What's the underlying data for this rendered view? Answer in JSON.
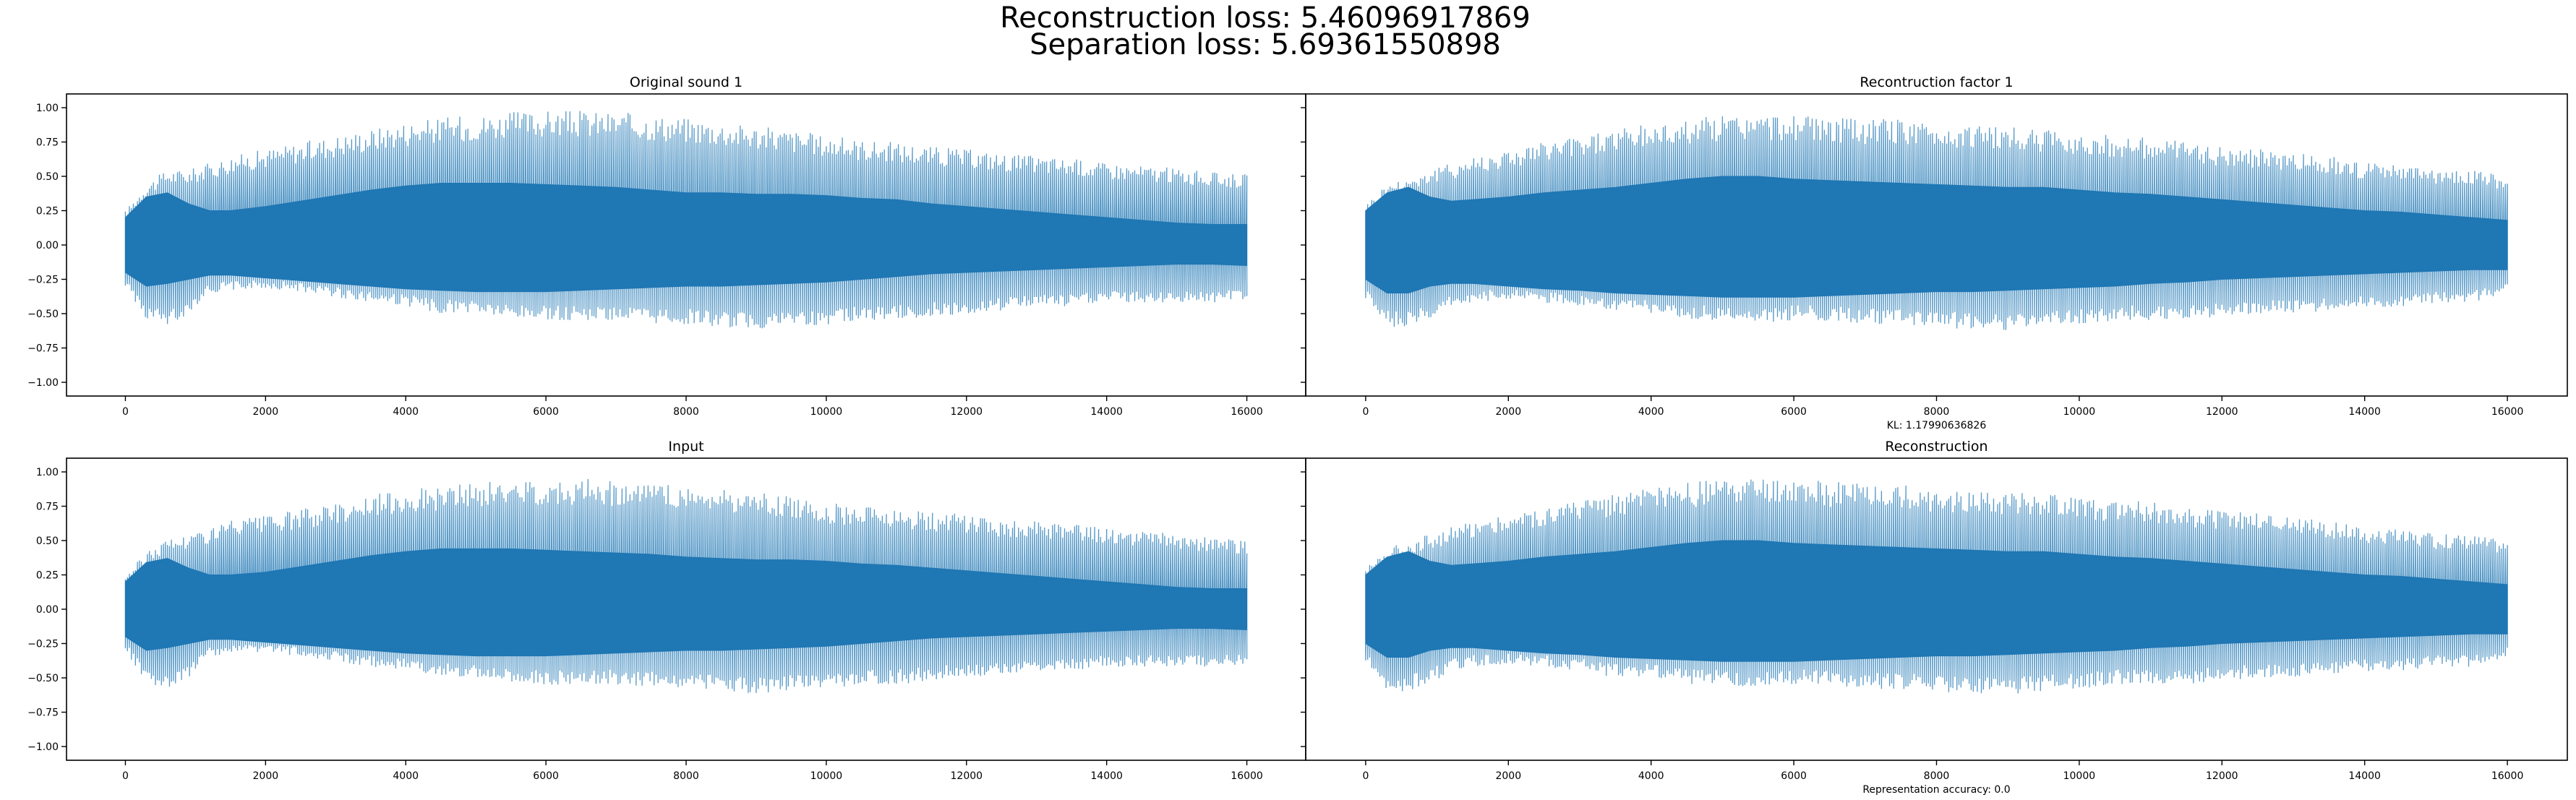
{
  "figure": {
    "title_line1": "Reconstruction loss: 5.46096917869",
    "title_line2": "Separation loss: 5.69361550898",
    "line_color": "#1f77b4"
  },
  "chart_data": [
    {
      "type": "line",
      "title": "Original sound 1",
      "xlabel": "",
      "ylabel": "",
      "xlim": [
        -840,
        16840
      ],
      "ylim": [
        -1.1,
        1.1
      ],
      "xticks": [
        0,
        2000,
        4000,
        6000,
        8000,
        10000,
        12000,
        14000,
        16000
      ],
      "yticks": [
        1.0,
        0.75,
        0.5,
        0.25,
        0.0,
        -0.25,
        -0.5,
        -0.75,
        -1.0
      ],
      "ytick_labels": [
        "1.00",
        "0.75",
        "0.50",
        "0.25",
        "0.00",
        "−0.25",
        "−0.50",
        "−0.75",
        "−1.00"
      ],
      "annotation": "",
      "series": [
        {
          "x": [
            0,
            300,
            600,
            900,
            1200,
            1500,
            2000,
            2500,
            3000,
            3500,
            4000,
            4500,
            5000,
            5500,
            6000,
            6500,
            7000,
            7500,
            8000,
            8500,
            9000,
            9500,
            10000,
            10500,
            11000,
            11500,
            12000,
            12500,
            13000,
            13500,
            14000,
            14500,
            15000,
            15500,
            16000
          ],
          "upper": [
            0.25,
            0.45,
            0.55,
            0.55,
            0.6,
            0.65,
            0.7,
            0.75,
            0.8,
            0.85,
            0.9,
            0.93,
            0.95,
            0.97,
            0.98,
            0.98,
            0.97,
            0.95,
            0.93,
            0.9,
            0.87,
            0.84,
            0.8,
            0.77,
            0.75,
            0.72,
            0.7,
            0.67,
            0.65,
            0.63,
            0.6,
            0.58,
            0.56,
            0.53,
            0.52
          ],
          "lower": [
            -0.3,
            -0.55,
            -0.6,
            -0.5,
            -0.35,
            -0.33,
            -0.32,
            -0.34,
            -0.38,
            -0.42,
            -0.45,
            -0.5,
            -0.5,
            -0.55,
            -0.55,
            -0.55,
            -0.55,
            -0.58,
            -0.58,
            -0.6,
            -0.62,
            -0.6,
            -0.58,
            -0.55,
            -0.55,
            -0.52,
            -0.5,
            -0.48,
            -0.45,
            -0.45,
            -0.42,
            -0.42,
            -0.42,
            -0.42,
            -0.4
          ],
          "core_upper": [
            0.2,
            0.35,
            0.38,
            0.3,
            0.25,
            0.25,
            0.28,
            0.32,
            0.36,
            0.4,
            0.43,
            0.45,
            0.45,
            0.45,
            0.44,
            0.43,
            0.42,
            0.4,
            0.38,
            0.38,
            0.37,
            0.37,
            0.36,
            0.34,
            0.33,
            0.3,
            0.28,
            0.26,
            0.24,
            0.22,
            0.2,
            0.18,
            0.16,
            0.15,
            0.15
          ],
          "core_lower": [
            -0.2,
            -0.3,
            -0.28,
            -0.25,
            -0.22,
            -0.22,
            -0.24,
            -0.26,
            -0.28,
            -0.3,
            -0.32,
            -0.33,
            -0.34,
            -0.34,
            -0.34,
            -0.33,
            -0.32,
            -0.31,
            -0.3,
            -0.3,
            -0.29,
            -0.28,
            -0.27,
            -0.25,
            -0.23,
            -0.21,
            -0.2,
            -0.19,
            -0.18,
            -0.17,
            -0.16,
            -0.15,
            -0.14,
            -0.14,
            -0.15
          ]
        }
      ]
    },
    {
      "type": "line",
      "title": "Recontruction factor 1",
      "xlabel": "",
      "ylabel": "",
      "xlim": [
        -840,
        16840
      ],
      "ylim": [
        -1.1,
        1.1
      ],
      "xticks": [
        0,
        2000,
        4000,
        6000,
        8000,
        10000,
        12000,
        14000,
        16000
      ],
      "yticks": [
        1.0,
        0.75,
        0.5,
        0.25,
        0.0,
        -0.25,
        -0.5,
        -0.75,
        -1.0
      ],
      "ytick_labels": [
        "",
        "",
        "",
        "",
        "",
        "",
        "",
        "",
        ""
      ],
      "annotation": "KL: 1.17990636826",
      "series": [
        {
          "x": [
            0,
            300,
            600,
            900,
            1200,
            1500,
            2000,
            2500,
            3000,
            3500,
            4000,
            4500,
            5000,
            5500,
            6000,
            6500,
            7000,
            7500,
            8000,
            8500,
            9000,
            9500,
            10000,
            10500,
            11000,
            11500,
            12000,
            12500,
            13000,
            13500,
            14000,
            14500,
            15000,
            15500,
            16000
          ],
          "upper": [
            0.3,
            0.45,
            0.5,
            0.55,
            0.6,
            0.65,
            0.7,
            0.75,
            0.8,
            0.85,
            0.88,
            0.92,
            0.95,
            0.95,
            0.95,
            0.93,
            0.92,
            0.92,
            0.88,
            0.88,
            0.86,
            0.84,
            0.82,
            0.8,
            0.78,
            0.75,
            0.72,
            0.7,
            0.67,
            0.65,
            0.6,
            0.58,
            0.55,
            0.55,
            0.5
          ],
          "lower": [
            -0.4,
            -0.6,
            -0.6,
            -0.55,
            -0.45,
            -0.42,
            -0.4,
            -0.42,
            -0.45,
            -0.5,
            -0.5,
            -0.55,
            -0.55,
            -0.58,
            -0.55,
            -0.55,
            -0.58,
            -0.58,
            -0.6,
            -0.62,
            -0.62,
            -0.6,
            -0.58,
            -0.55,
            -0.55,
            -0.55,
            -0.52,
            -0.5,
            -0.5,
            -0.48,
            -0.45,
            -0.45,
            -0.42,
            -0.42,
            -0.35
          ],
          "core_upper": [
            0.25,
            0.38,
            0.42,
            0.35,
            0.32,
            0.33,
            0.35,
            0.38,
            0.4,
            0.42,
            0.45,
            0.48,
            0.5,
            0.5,
            0.48,
            0.47,
            0.46,
            0.45,
            0.44,
            0.43,
            0.42,
            0.42,
            0.4,
            0.38,
            0.37,
            0.35,
            0.33,
            0.31,
            0.29,
            0.27,
            0.25,
            0.24,
            0.22,
            0.2,
            0.18
          ],
          "core_lower": [
            -0.25,
            -0.35,
            -0.35,
            -0.3,
            -0.28,
            -0.28,
            -0.3,
            -0.32,
            -0.33,
            -0.35,
            -0.36,
            -0.37,
            -0.38,
            -0.38,
            -0.38,
            -0.37,
            -0.36,
            -0.35,
            -0.34,
            -0.34,
            -0.33,
            -0.32,
            -0.31,
            -0.3,
            -0.28,
            -0.27,
            -0.25,
            -0.24,
            -0.23,
            -0.22,
            -0.21,
            -0.2,
            -0.19,
            -0.18,
            -0.18
          ]
        }
      ]
    },
    {
      "type": "line",
      "title": "Input",
      "xlabel": "",
      "ylabel": "",
      "xlim": [
        -840,
        16840
      ],
      "ylim": [
        -1.1,
        1.1
      ],
      "xticks": [
        0,
        2000,
        4000,
        6000,
        8000,
        10000,
        12000,
        14000,
        16000
      ],
      "yticks": [
        1.0,
        0.75,
        0.5,
        0.25,
        0.0,
        -0.25,
        -0.5,
        -0.75,
        -1.0
      ],
      "ytick_labels": [
        "1.00",
        "0.75",
        "0.50",
        "0.25",
        "0.00",
        "−0.25",
        "−0.50",
        "−0.75",
        "−1.00"
      ],
      "annotation": "",
      "series": [
        {
          "x": [
            0,
            300,
            600,
            900,
            1200,
            1500,
            2000,
            2500,
            3000,
            3500,
            4000,
            4500,
            5000,
            5500,
            6000,
            6500,
            7000,
            7500,
            8000,
            8500,
            9000,
            9500,
            10000,
            10500,
            11000,
            11500,
            12000,
            12500,
            13000,
            13500,
            14000,
            14500,
            15000,
            15500,
            16000
          ],
          "upper": [
            0.25,
            0.42,
            0.52,
            0.55,
            0.6,
            0.65,
            0.68,
            0.73,
            0.78,
            0.83,
            0.88,
            0.9,
            0.92,
            0.94,
            0.95,
            0.95,
            0.94,
            0.92,
            0.9,
            0.88,
            0.85,
            0.82,
            0.78,
            0.76,
            0.74,
            0.71,
            0.69,
            0.66,
            0.64,
            0.62,
            0.59,
            0.57,
            0.55,
            0.52,
            0.5
          ],
          "lower": [
            -0.3,
            -0.55,
            -0.58,
            -0.5,
            -0.35,
            -0.33,
            -0.32,
            -0.34,
            -0.38,
            -0.42,
            -0.45,
            -0.48,
            -0.5,
            -0.53,
            -0.55,
            -0.55,
            -0.55,
            -0.57,
            -0.58,
            -0.6,
            -0.62,
            -0.6,
            -0.58,
            -0.55,
            -0.55,
            -0.52,
            -0.5,
            -0.48,
            -0.45,
            -0.45,
            -0.42,
            -0.42,
            -0.42,
            -0.42,
            -0.4
          ],
          "core_upper": [
            0.2,
            0.34,
            0.37,
            0.3,
            0.25,
            0.25,
            0.27,
            0.31,
            0.35,
            0.39,
            0.42,
            0.44,
            0.44,
            0.44,
            0.43,
            0.42,
            0.41,
            0.4,
            0.38,
            0.37,
            0.36,
            0.36,
            0.35,
            0.33,
            0.32,
            0.3,
            0.28,
            0.26,
            0.24,
            0.22,
            0.2,
            0.18,
            0.16,
            0.15,
            0.15
          ],
          "core_lower": [
            -0.2,
            -0.3,
            -0.28,
            -0.25,
            -0.22,
            -0.22,
            -0.24,
            -0.26,
            -0.28,
            -0.3,
            -0.32,
            -0.33,
            -0.34,
            -0.34,
            -0.34,
            -0.33,
            -0.32,
            -0.31,
            -0.3,
            -0.3,
            -0.29,
            -0.28,
            -0.27,
            -0.25,
            -0.23,
            -0.21,
            -0.2,
            -0.19,
            -0.18,
            -0.17,
            -0.16,
            -0.15,
            -0.14,
            -0.14,
            -0.15
          ]
        }
      ]
    },
    {
      "type": "line",
      "title": "Reconstruction",
      "xlabel": "",
      "ylabel": "",
      "xlim": [
        -840,
        16840
      ],
      "ylim": [
        -1.1,
        1.1
      ],
      "xticks": [
        0,
        2000,
        4000,
        6000,
        8000,
        10000,
        12000,
        14000,
        16000
      ],
      "yticks": [
        1.0,
        0.75,
        0.5,
        0.25,
        0.0,
        -0.25,
        -0.5,
        -0.75,
        -1.0
      ],
      "ytick_labels": [
        "",
        "",
        "",
        "",
        "",
        "",
        "",
        "",
        ""
      ],
      "annotation": "Representation accuracy: 0.0",
      "series": [
        {
          "x": [
            0,
            300,
            600,
            900,
            1200,
            1500,
            2000,
            2500,
            3000,
            3500,
            4000,
            4500,
            5000,
            5500,
            6000,
            6500,
            7000,
            7500,
            8000,
            8500,
            9000,
            9500,
            10000,
            10500,
            11000,
            11500,
            12000,
            12500,
            13000,
            13500,
            14000,
            14500,
            15000,
            15500,
            16000
          ],
          "upper": [
            0.3,
            0.45,
            0.5,
            0.55,
            0.6,
            0.65,
            0.7,
            0.75,
            0.8,
            0.85,
            0.88,
            0.92,
            0.95,
            0.95,
            0.95,
            0.93,
            0.92,
            0.92,
            0.88,
            0.88,
            0.86,
            0.84,
            0.82,
            0.8,
            0.78,
            0.75,
            0.72,
            0.7,
            0.67,
            0.65,
            0.6,
            0.58,
            0.55,
            0.55,
            0.5
          ],
          "lower": [
            -0.4,
            -0.6,
            -0.6,
            -0.55,
            -0.45,
            -0.42,
            -0.4,
            -0.42,
            -0.45,
            -0.5,
            -0.5,
            -0.55,
            -0.55,
            -0.58,
            -0.55,
            -0.55,
            -0.58,
            -0.58,
            -0.6,
            -0.62,
            -0.62,
            -0.6,
            -0.58,
            -0.55,
            -0.55,
            -0.55,
            -0.52,
            -0.5,
            -0.5,
            -0.48,
            -0.45,
            -0.45,
            -0.42,
            -0.42,
            -0.35
          ],
          "core_upper": [
            0.25,
            0.38,
            0.42,
            0.35,
            0.32,
            0.33,
            0.35,
            0.38,
            0.4,
            0.42,
            0.45,
            0.48,
            0.5,
            0.5,
            0.48,
            0.47,
            0.46,
            0.45,
            0.44,
            0.43,
            0.42,
            0.42,
            0.4,
            0.38,
            0.37,
            0.35,
            0.33,
            0.31,
            0.29,
            0.27,
            0.25,
            0.24,
            0.22,
            0.2,
            0.18
          ],
          "core_lower": [
            -0.25,
            -0.35,
            -0.35,
            -0.3,
            -0.28,
            -0.28,
            -0.3,
            -0.32,
            -0.33,
            -0.35,
            -0.36,
            -0.37,
            -0.38,
            -0.38,
            -0.38,
            -0.37,
            -0.36,
            -0.35,
            -0.34,
            -0.34,
            -0.33,
            -0.32,
            -0.31,
            -0.3,
            -0.28,
            -0.27,
            -0.25,
            -0.24,
            -0.23,
            -0.22,
            -0.21,
            -0.2,
            -0.19,
            -0.18,
            -0.18
          ]
        }
      ]
    }
  ]
}
